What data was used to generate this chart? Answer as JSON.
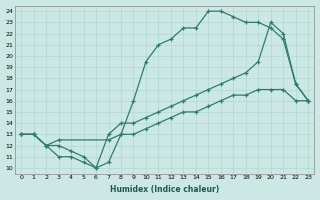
{
  "xlabel": "Humidex (Indice chaleur)",
  "bg_color": "#cce8e4",
  "line_color": "#2d7d6e",
  "grid_color": "#b0d8d0",
  "xlim": [
    -0.5,
    23.5
  ],
  "ylim": [
    9.5,
    24.5
  ],
  "xticks": [
    0,
    1,
    2,
    3,
    4,
    5,
    6,
    7,
    8,
    9,
    10,
    11,
    12,
    13,
    14,
    15,
    16,
    17,
    18,
    19,
    20,
    21,
    22,
    23
  ],
  "yticks": [
    10,
    11,
    12,
    13,
    14,
    15,
    16,
    17,
    18,
    19,
    20,
    21,
    22,
    23,
    24
  ],
  "line1_x": [
    0,
    1,
    2,
    3,
    4,
    5,
    6,
    7,
    8,
    9,
    10,
    11,
    12,
    13,
    14,
    15,
    16,
    17,
    18,
    19,
    20,
    21,
    22,
    23
  ],
  "line1_y": [
    13,
    13,
    12,
    11,
    11,
    10.5,
    10,
    10.5,
    13,
    16,
    19.5,
    21,
    21.5,
    22.5,
    22.5,
    24,
    24,
    23.5,
    23,
    23,
    22.5,
    21.5,
    17.5,
    16
  ],
  "line2_x": [
    0,
    1,
    2,
    3,
    4,
    5,
    6,
    7,
    8,
    9,
    10,
    11,
    12,
    13,
    14,
    15,
    16,
    17,
    18,
    19,
    20,
    21,
    22,
    23
  ],
  "line2_y": [
    13,
    13,
    12,
    12,
    11.5,
    11,
    10,
    13,
    14,
    14,
    14.5,
    15,
    15.5,
    16,
    16.5,
    17,
    17.5,
    18,
    18.5,
    19.5,
    23,
    22,
    17.5,
    16
  ],
  "line3_x": [
    0,
    1,
    2,
    3,
    7,
    8,
    9,
    10,
    11,
    12,
    13,
    14,
    15,
    16,
    17,
    18,
    19,
    20,
    21,
    22,
    23
  ],
  "line3_y": [
    13,
    13,
    12,
    12.5,
    12.5,
    13,
    13,
    13.5,
    14,
    14.5,
    15,
    15,
    15.5,
    16,
    16.5,
    16.5,
    17,
    17,
    17,
    16,
    16
  ]
}
